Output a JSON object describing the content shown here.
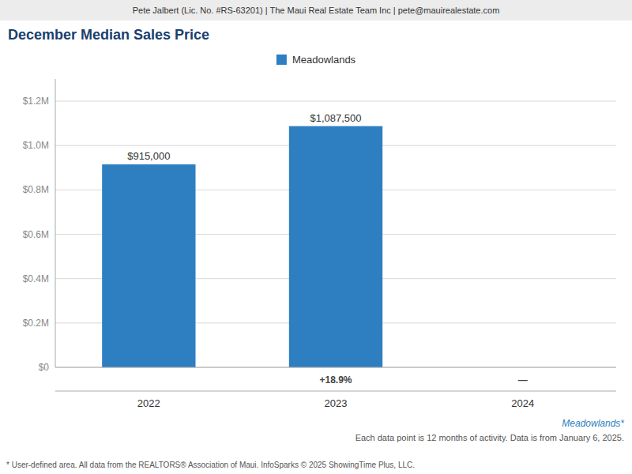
{
  "chart_data": {
    "type": "bar",
    "title": "December Median Sales Price",
    "categories": [
      "2022",
      "2023",
      "2024"
    ],
    "series": [
      {
        "name": "Meadowlands",
        "color": "#2e7fc1",
        "values": [
          915000,
          1087500,
          null
        ],
        "value_labels": [
          "$915,000",
          "$1,087,500",
          null
        ]
      }
    ],
    "ylim": [
      0,
      1300000
    ],
    "yticks": [
      {
        "value": 0,
        "label": "$0"
      },
      {
        "value": 200000,
        "label": "$0.2M"
      },
      {
        "value": 400000,
        "label": "$0.4M"
      },
      {
        "value": 600000,
        "label": "$0.6M"
      },
      {
        "value": 800000,
        "label": "$0.8M"
      },
      {
        "value": 1000000,
        "label": "$1.0M"
      },
      {
        "value": 1200000,
        "label": "$1.2M"
      }
    ],
    "grid": true,
    "legend": "top",
    "data_labels": true,
    "annotations": [
      {
        "text": "Pete Jalbert (Lic. No. #RS-63201) | The Maui Real Estate Team Inc | pete@mauirealestate.com"
      },
      {
        "text": "+18.9%",
        "x": "2023"
      },
      {
        "text": "—",
        "x": "2024"
      },
      {
        "text": "Meadowlands*"
      },
      {
        "text": "Each data point is 12 months of activity. Data is from January 6, 2025."
      },
      {
        "text": "* User-defined area. All data from the REALTORS® Association of Maui. InfoSparks © 2025 ShowingTime Plus, LLC."
      }
    ]
  }
}
